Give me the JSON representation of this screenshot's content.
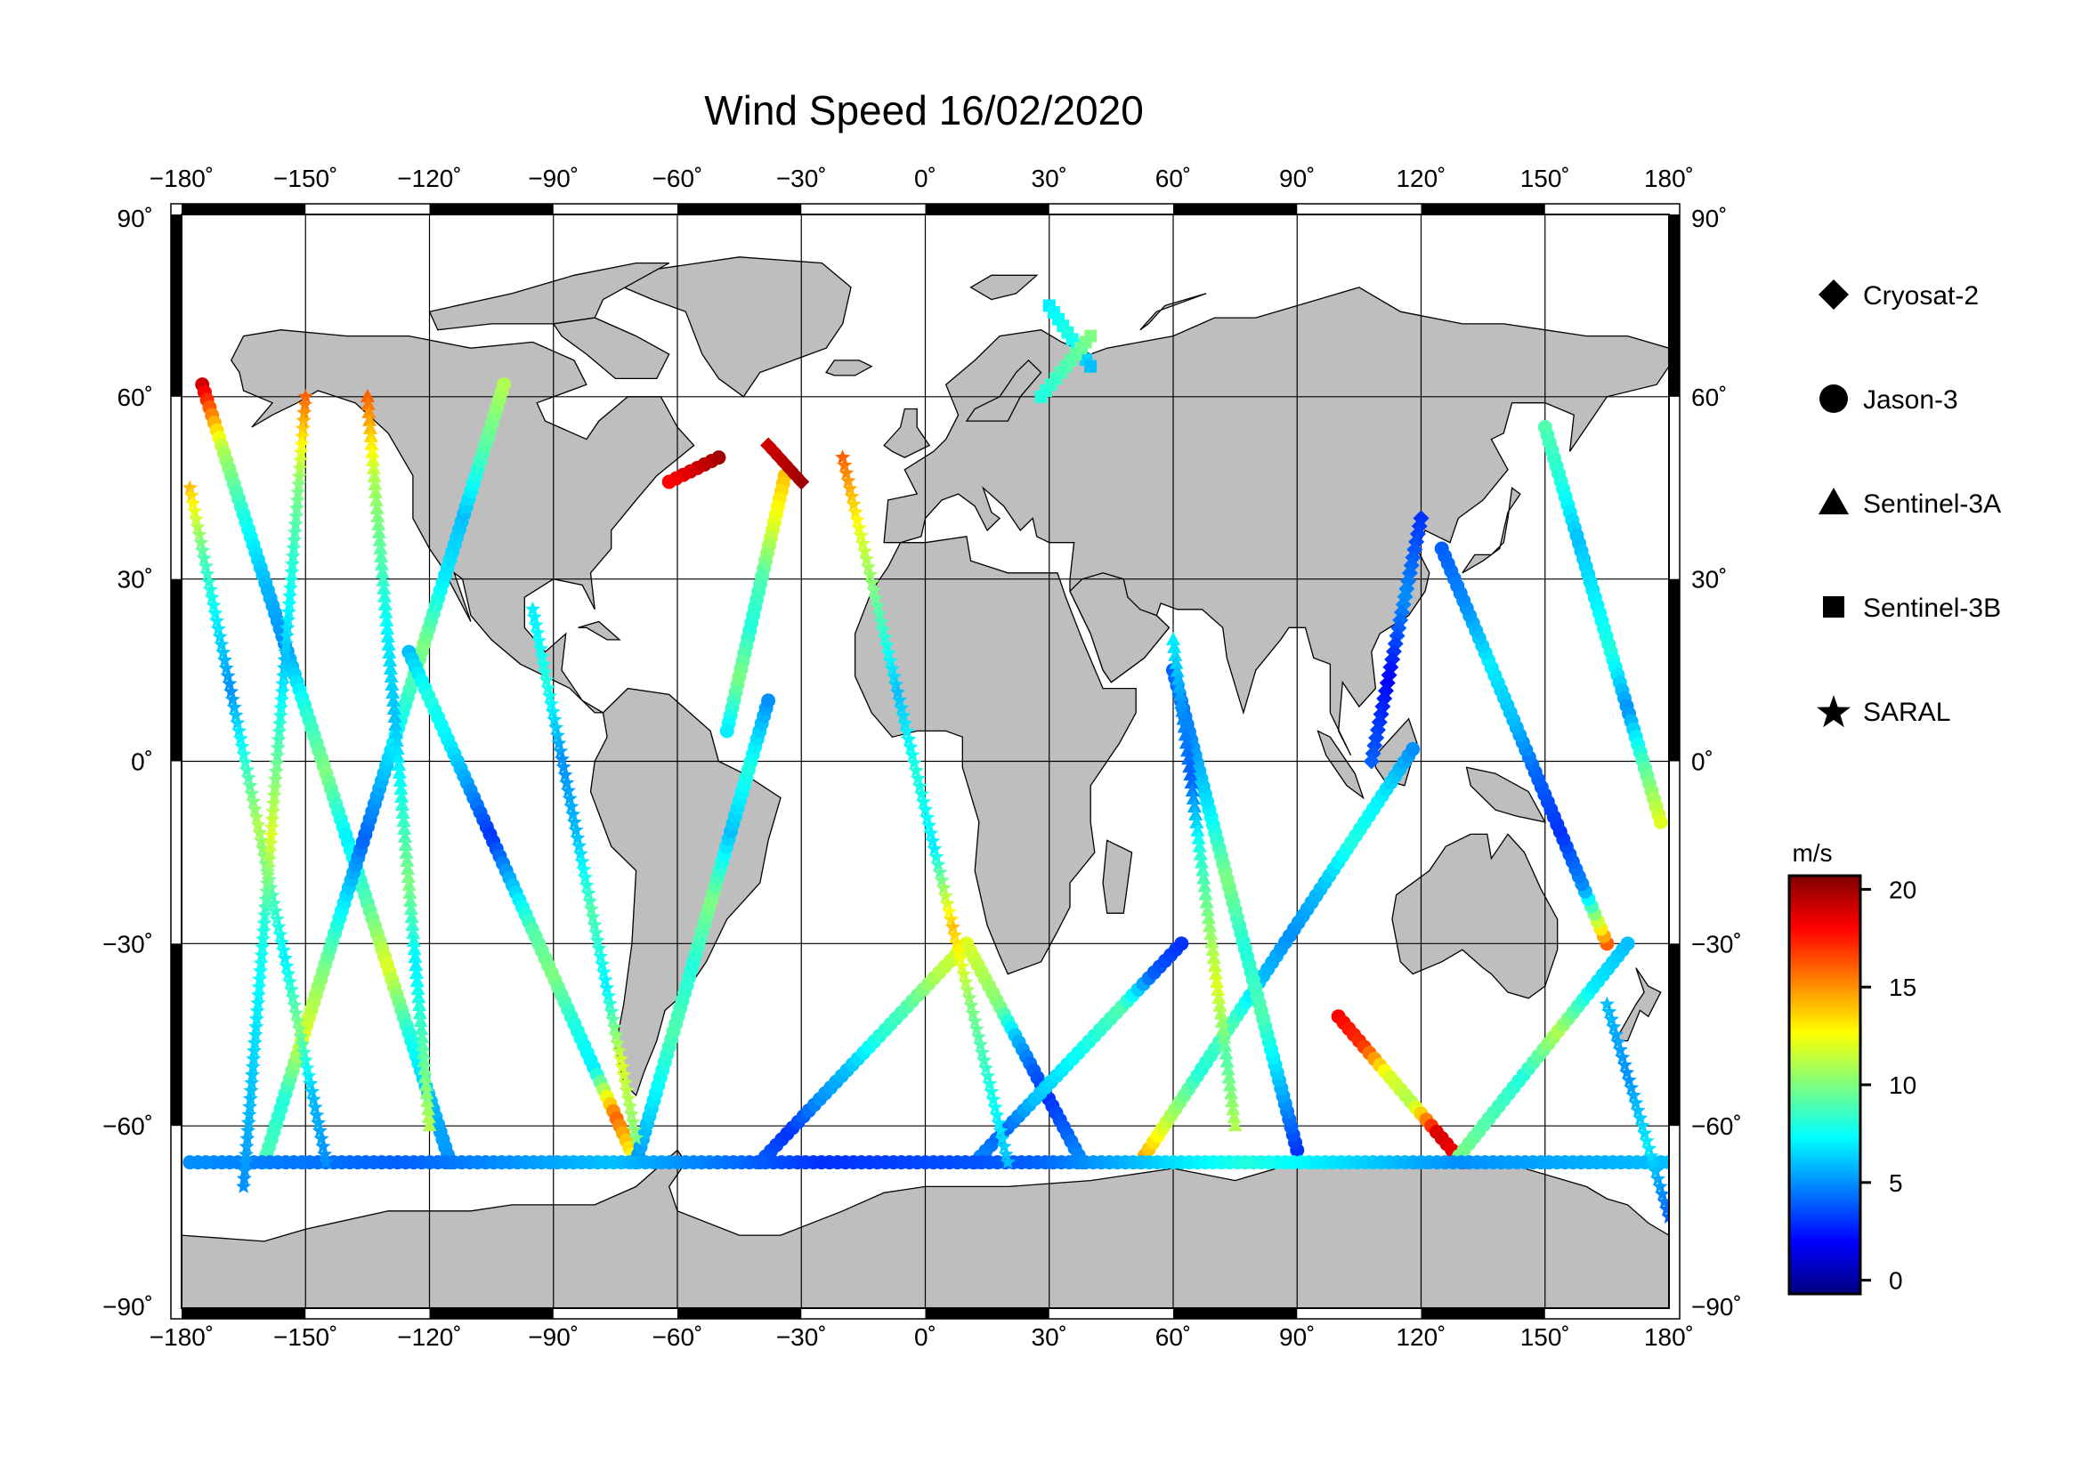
{
  "title": "Wind Speed 16/02/2020",
  "map": {
    "projection": "equirectangular",
    "lon_range": [
      -180,
      180
    ],
    "lat_range": [
      -90,
      90
    ],
    "lon_ticks": [
      {
        "value": -180,
        "label": "−180˚"
      },
      {
        "value": -150,
        "label": "−150˚"
      },
      {
        "value": -120,
        "label": "−120˚"
      },
      {
        "value": -90,
        "label": "−90˚"
      },
      {
        "value": -60,
        "label": "−60˚"
      },
      {
        "value": -30,
        "label": "−30˚"
      },
      {
        "value": 0,
        "label": "0˚"
      },
      {
        "value": 30,
        "label": "30˚"
      },
      {
        "value": 60,
        "label": "60˚"
      },
      {
        "value": 90,
        "label": "90˚"
      },
      {
        "value": 120,
        "label": "120˚"
      },
      {
        "value": 150,
        "label": "150˚"
      },
      {
        "value": 180,
        "label": "180˚"
      }
    ],
    "lat_ticks": [
      {
        "value": 90,
        "label": "90˚"
      },
      {
        "value": 60,
        "label": "60˚"
      },
      {
        "value": 30,
        "label": "30˚"
      },
      {
        "value": 0,
        "label": "0˚"
      },
      {
        "value": -30,
        "label": "−30˚"
      },
      {
        "value": -60,
        "label": "−60˚"
      },
      {
        "value": -90,
        "label": "−90˚"
      }
    ],
    "grid": true,
    "land_color": "#bebebe",
    "ocean_color": "#ffffff"
  },
  "legend": {
    "items": [
      {
        "label": "Cryosat-2",
        "marker": "diamond"
      },
      {
        "label": "Jason-3",
        "marker": "circle"
      },
      {
        "label": "Sentinel-3A",
        "marker": "triangle"
      },
      {
        "label": "Sentinel-3B",
        "marker": "square"
      },
      {
        "label": "SARAL",
        "marker": "star"
      }
    ]
  },
  "colorbar": {
    "unit": "m/s",
    "ticks": [
      {
        "value": 20,
        "label": "20"
      },
      {
        "value": 15,
        "label": "15"
      },
      {
        "value": 10,
        "label": "10"
      },
      {
        "value": 5,
        "label": "5"
      },
      {
        "value": 0,
        "label": "0"
      }
    ],
    "range": [
      -0.7,
      20.7
    ],
    "colormap": "jet"
  },
  "chart_data": {
    "type": "scatter",
    "title": "Wind Speed 16/02/2020",
    "xlabel": "",
    "ylabel": "",
    "xlim": [
      -180,
      180
    ],
    "ylim": [
      -90,
      90
    ],
    "value_unit": "m/s",
    "series": [
      {
        "name": "Jason-3",
        "marker": "circle",
        "tracks": [
          {
            "lon0": -175,
            "lat0": 62,
            "lon1": -115,
            "lat1": -66,
            "speeds": [
              19,
              11,
              8,
              6,
              5,
              8,
              10,
              7,
              9,
              12,
              8,
              6,
              5
            ]
          },
          {
            "lon0": -160,
            "lat0": -66,
            "lon1": -102,
            "lat1": 62,
            "speeds": [
              9,
              8,
              12,
              10,
              7,
              4,
              6,
              8,
              10,
              7,
              6,
              9,
              11
            ]
          },
          {
            "lon0": -125,
            "lat0": 18,
            "lon1": -70,
            "lat1": -66,
            "speeds": [
              6,
              8,
              7,
              5,
              3,
              6,
              9,
              10,
              8,
              7,
              16,
              12
            ]
          },
          {
            "lon0": -70,
            "lat0": -66,
            "lon1": -38,
            "lat1": 10,
            "speeds": [
              5,
              7,
              9,
              8,
              10,
              6,
              8,
              5
            ]
          },
          {
            "lon0": -34,
            "lat0": 47,
            "lon1": -48,
            "lat1": 5,
            "speeds": [
              14,
              12,
              9,
              8,
              10,
              7
            ]
          },
          {
            "lon0": -50,
            "lat0": 50,
            "lon1": -62,
            "lat1": 46,
            "speeds": [
              20,
              19,
              18
            ]
          },
          {
            "lon0": -40,
            "lat0": -66,
            "lon1": 10,
            "lat1": -30,
            "speeds": [
              4,
              3,
              5,
              6,
              8,
              9,
              11,
              12
            ]
          },
          {
            "lon0": 10,
            "lat0": -30,
            "lon1": 38,
            "lat1": -66,
            "speeds": [
              12,
              11,
              10,
              6,
              4,
              3,
              4,
              5
            ]
          },
          {
            "lon0": 12,
            "lat0": -66,
            "lon1": 62,
            "lat1": -30,
            "speeds": [
              5,
              4,
              6,
              7,
              8,
              9,
              4,
              3
            ]
          },
          {
            "lon0": 52,
            "lat0": -66,
            "lon1": 118,
            "lat1": 2,
            "speeds": [
              15,
              11,
              8,
              9,
              6,
              5,
              6,
              8,
              7,
              5
            ]
          },
          {
            "lon0": 90,
            "lat0": -64,
            "lon1": 60,
            "lat1": 15,
            "speeds": [
              3,
              6,
              9,
              8,
              10,
              7,
              5,
              4
            ]
          },
          {
            "lon0": 100,
            "lat0": -42,
            "lon1": 130,
            "lat1": -66,
            "speeds": [
              18,
              17,
              12,
              11,
              19,
              18
            ]
          },
          {
            "lon0": 128,
            "lat0": -66,
            "lon1": 170,
            "lat1": -30,
            "speeds": [
              10,
              9,
              8,
              11,
              7,
              6
            ]
          },
          {
            "lon0": 150,
            "lat0": 55,
            "lon1": 178,
            "lat1": -10,
            "speeds": [
              9,
              8,
              6,
              7,
              8,
              5,
              9,
              12
            ]
          },
          {
            "lon0": 165,
            "lat0": -30,
            "lon1": 125,
            "lat1": 35,
            "speeds": [
              16,
              5,
              3,
              4,
              6,
              7,
              5,
              4
            ]
          },
          {
            "lon0": -178,
            "lat0": -66,
            "lon1": 180,
            "lat1": -66,
            "speeds": [
              5,
              4,
              6,
              3,
              4,
              8,
              5,
              6
            ]
          }
        ]
      },
      {
        "name": "SARAL",
        "marker": "star",
        "tracks": [
          {
            "lon0": -178,
            "lat0": 45,
            "lon1": -145,
            "lat1": -66,
            "speeds": [
              14,
              9,
              7,
              5,
              8,
              11,
              9,
              7,
              10,
              6,
              5
            ]
          },
          {
            "lon0": -150,
            "lat0": 60,
            "lon1": -165,
            "lat1": -70,
            "speeds": [
              16,
              10,
              8,
              6,
              9,
              12,
              8,
              7,
              6,
              5
            ]
          },
          {
            "lon0": -95,
            "lat0": 25,
            "lon1": -70,
            "lat1": -62,
            "speeds": [
              7,
              8,
              5,
              6,
              9,
              7,
              12,
              10
            ]
          },
          {
            "lon0": -20,
            "lat0": 50,
            "lon1": 20,
            "lat1": -66,
            "speeds": [
              16,
              12,
              9,
              6,
              8,
              7,
              14,
              10,
              8,
              6
            ]
          },
          {
            "lon0": 165,
            "lat0": -40,
            "lon1": 180,
            "lat1": -75,
            "speeds": [
              6,
              5,
              7,
              4
            ]
          }
        ]
      },
      {
        "name": "Sentinel-3A",
        "marker": "triangle",
        "tracks": [
          {
            "lon0": -135,
            "lat0": 60,
            "lon1": -120,
            "lat1": -60,
            "speeds": [
              16,
              11,
              9,
              7,
              6,
              8,
              10,
              7,
              9,
              11
            ]
          },
          {
            "lon0": 60,
            "lat0": 20,
            "lon1": 75,
            "lat1": -60,
            "speeds": [
              7,
              5,
              4,
              8,
              10,
              12,
              9,
              11
            ]
          }
        ]
      },
      {
        "name": "Sentinel-3B",
        "marker": "square",
        "tracks": [
          {
            "lon0": 30,
            "lat0": 75,
            "lon1": 40,
            "lat1": 65,
            "speeds": [
              7,
              8,
              6
            ]
          },
          {
            "lon0": 40,
            "lat0": 70,
            "lon1": 28,
            "lat1": 60,
            "speeds": [
              10,
              9,
              8
            ]
          }
        ]
      },
      {
        "name": "Cryosat-2",
        "marker": "diamond",
        "tracks": [
          {
            "lon0": -38,
            "lat0": 52,
            "lon1": -30,
            "lat1": 46,
            "speeds": [
              19,
              20
            ]
          },
          {
            "lon0": 120,
            "lat0": 40,
            "lon1": 108,
            "lat1": 0,
            "speeds": [
              3,
              5,
              2,
              4
            ]
          }
        ]
      }
    ]
  }
}
